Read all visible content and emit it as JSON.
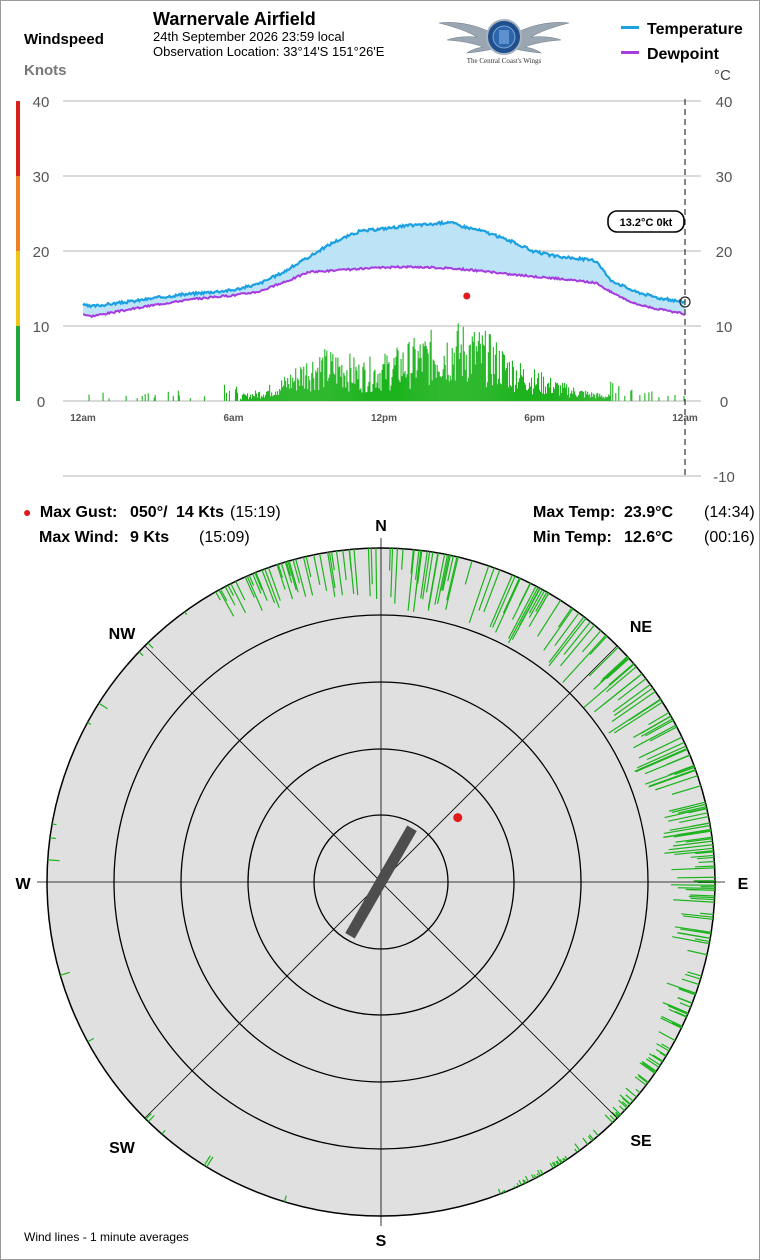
{
  "header": {
    "title": "Warnervale Airfield",
    "observation_time": "24th September 2026  23:59 local",
    "observation_location": "Observation Location:  33°14'S 151°26'E",
    "logo_text": "The Central Coast's Wings"
  },
  "windspeed_axis": {
    "title": "Windspeed",
    "unit": "Knots"
  },
  "temperature_axis": {
    "unit": "°C"
  },
  "legend": {
    "temperature": "Temperature",
    "dewpoint": "Dewpoint"
  },
  "current_reading": "13.2°C  0kt",
  "colors": {
    "temperature": "#1ba1e2",
    "dewpoint": "#a53ce0",
    "fill": "#bde3f7",
    "wind_bars": "#1db31d",
    "gust_marker": "#e01b1b",
    "scale_red": "#d9201a",
    "scale_orange": "#ef7d22",
    "scale_yellow": "#f0c419",
    "scale_green": "#1fa83a",
    "compass_face": "#e0e0e0"
  },
  "stats": {
    "max_gust_label": "Max Gust:",
    "max_gust_dir": "050°/",
    "max_gust_speed": "14 Kts",
    "max_gust_time": "(15:19)",
    "max_wind_label": "Max Wind:",
    "max_wind_speed": "9 Kts",
    "max_wind_time": "(15:09)",
    "max_temp_label": "Max Temp:",
    "max_temp_value": "23.9°C",
    "max_temp_time": "(14:34)",
    "min_temp_label": "Min Temp:",
    "min_temp_value": "12.6°C",
    "min_temp_time": "(00:16)"
  },
  "compass": {
    "labels": {
      "N": "N",
      "NE": "NE",
      "E": "E",
      "SE": "SE",
      "S": "S",
      "SW": "SW",
      "W": "W",
      "NW": "NW"
    },
    "runway_heading_deg": 30,
    "gust_direction_deg": 50,
    "gust_speed_kt": 14
  },
  "footnote": "Wind lines - 1 minute averages",
  "chart_data": {
    "type": "line",
    "x_ticks": [
      "12am",
      "6am",
      "12pm",
      "6pm",
      "12am"
    ],
    "x_tick_hours": [
      0,
      6,
      12,
      18,
      24
    ],
    "wind_ylim": [
      0,
      40
    ],
    "wind_ticks": [
      0,
      10,
      20,
      30,
      40
    ],
    "temp_ylim": [
      -10,
      40
    ],
    "temp_ticks": [
      -10,
      0,
      10,
      20,
      30,
      40
    ],
    "grid": true,
    "legend_position": "top-right",
    "series": [
      {
        "name": "Temperature",
        "hours": [
          0,
          0.3,
          1,
          2,
          3,
          4,
          5,
          6,
          7,
          8,
          9,
          10,
          11,
          12,
          13,
          14,
          14.6,
          15,
          16,
          17,
          18,
          19,
          20,
          20.5,
          21,
          22,
          23,
          24
        ],
        "values": [
          12.8,
          12.6,
          12.9,
          13.3,
          13.8,
          14.2,
          14.5,
          14.8,
          15.6,
          17.2,
          19.2,
          21.2,
          22.6,
          23.0,
          23.4,
          23.6,
          23.9,
          23.4,
          22.6,
          21.4,
          19.9,
          19.2,
          18.9,
          18.6,
          16.2,
          14.6,
          13.7,
          13.2
        ]
      },
      {
        "name": "Dewpoint",
        "hours": [
          0,
          0.3,
          1,
          2,
          3,
          4,
          5,
          6,
          7,
          8,
          9,
          10,
          11,
          12,
          13,
          14,
          15,
          16,
          17,
          18,
          19,
          20,
          20.5,
          21,
          22,
          23,
          24
        ],
        "values": [
          11.6,
          11.3,
          11.7,
          12.3,
          12.9,
          13.4,
          13.8,
          14.1,
          14.6,
          15.8,
          17.2,
          17.4,
          17.6,
          17.8,
          17.9,
          17.8,
          17.6,
          17.3,
          16.9,
          16.6,
          16.3,
          15.9,
          15.7,
          14.6,
          13.0,
          12.2,
          11.6
        ]
      }
    ],
    "wind_speed_kt": {
      "hours": [
        0,
        1,
        2,
        3,
        4,
        5,
        6,
        6.5,
        7,
        7.5,
        8,
        8.5,
        9,
        9.5,
        10,
        10.5,
        11,
        11.5,
        12,
        12.5,
        13,
        13.5,
        14,
        14.5,
        15,
        15.5,
        16,
        16.5,
        17,
        17.5,
        18,
        18.5,
        19,
        19.5,
        20,
        20.5,
        21,
        21.5,
        22,
        22.5,
        23,
        24
      ],
      "values": [
        0.3,
        0.2,
        0.3,
        0.2,
        0.3,
        0.4,
        0.6,
        0.8,
        1.2,
        1.8,
        2.6,
        3.8,
        5.0,
        5.5,
        5.4,
        5.2,
        4.3,
        4.6,
        5.0,
        5.6,
        6.3,
        6.9,
        7.5,
        8.0,
        8.3,
        8.0,
        7.4,
        6.4,
        5.1,
        4.1,
        3.4,
        2.7,
        2.1,
        1.6,
        1.2,
        0.9,
        0.7,
        0.5,
        0.3,
        0.3,
        0.2,
        0.1
      ]
    },
    "max_gust_marker": {
      "hour": 15.3,
      "wind_kt": 14
    },
    "current_marker": {
      "hour": 24,
      "temperature_c": 13.2,
      "wind_kt": 0
    },
    "wind_direction_samples": {
      "directions_deg": [
        0,
        10,
        20,
        30,
        40,
        50,
        60,
        70,
        80,
        90,
        100,
        110,
        120,
        135,
        150,
        165,
        195,
        225,
        255,
        280,
        300,
        315,
        325,
        335,
        345,
        355
      ],
      "typical_speed_kt": [
        8,
        8,
        9,
        8,
        9,
        9,
        8,
        8,
        7,
        6,
        5,
        4,
        3,
        1.5,
        1,
        0.5,
        0.5,
        0.5,
        1,
        0.5,
        1.5,
        3,
        4,
        5,
        6,
        7
      ]
    }
  }
}
